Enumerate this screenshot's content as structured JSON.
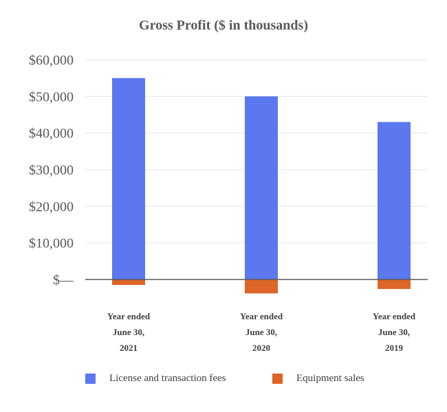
{
  "chart_data": {
    "type": "bar",
    "stacked": true,
    "title": "Gross Profit ($ in thousands)",
    "categories": [
      [
        "Year ended",
        "June 30,",
        "2021"
      ],
      [
        "Year ended",
        "June 30,",
        "2020"
      ],
      [
        "Year ended",
        "June 30,",
        "2019"
      ]
    ],
    "series": [
      {
        "name": "License and transaction fees",
        "color": "#5B78EF",
        "values": [
          55000,
          50000,
          43000
        ]
      },
      {
        "name": "Equipment sales",
        "color": "#DC6527",
        "values": [
          -1500,
          -3800,
          -2600
        ]
      }
    ],
    "yticks": [
      0,
      10000,
      20000,
      30000,
      40000,
      50000,
      60000
    ],
    "ytick_labels": [
      "$—",
      "$10,000",
      "$20,000",
      "$30,000",
      "$40,000",
      "$50,000",
      "$60,000"
    ],
    "ylim": [
      -6000,
      60000
    ],
    "xlabel": "",
    "ylabel": "",
    "grid": true,
    "legend_position": "bottom",
    "colors": {
      "grid": "#E6E6E6",
      "axis": "#595959",
      "text": "#595959"
    }
  }
}
